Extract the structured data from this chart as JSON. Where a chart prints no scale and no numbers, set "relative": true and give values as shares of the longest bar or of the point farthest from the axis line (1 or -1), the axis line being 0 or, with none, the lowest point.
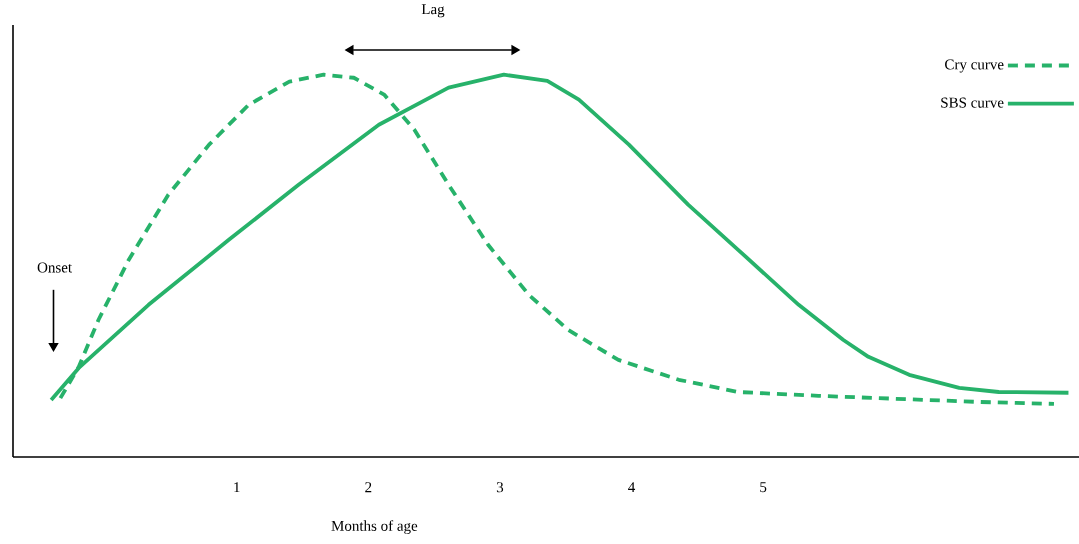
{
  "chart_data": {
    "type": "line",
    "relative": true,
    "xlabel": "Months of age",
    "xlim": [
      -0.7,
      7.4
    ],
    "xticks": [
      1,
      2,
      3,
      4,
      5
    ],
    "tick_labels": "x",
    "legend": "top right",
    "annotations": [
      "Onset",
      "Lag"
    ],
    "series": [
      {
        "name": "Cry curve",
        "color": "#27b26a",
        "line_style": "dashed",
        "x": [
          -0.34,
          -0.2,
          -0.05,
          0.18,
          0.48,
          0.79,
          1.09,
          1.4,
          1.66,
          1.89,
          2.12,
          2.35,
          2.61,
          2.91,
          3.22,
          3.52,
          3.9,
          4.36,
          4.81,
          5.42,
          6.03,
          6.64,
          7.21
        ],
        "values": [
          0.154,
          0.236,
          0.359,
          0.516,
          0.686,
          0.817,
          0.921,
          0.982,
          1.0,
          0.992,
          0.948,
          0.856,
          0.712,
          0.555,
          0.424,
          0.332,
          0.254,
          0.202,
          0.17,
          0.16,
          0.152,
          0.144,
          0.139
        ]
      },
      {
        "name": "SBS curve",
        "color": "#27b26a",
        "line_style": "solid",
        "x": [
          -0.41,
          -0.2,
          0.33,
          0.94,
          1.47,
          2.08,
          2.61,
          3.03,
          3.36,
          3.6,
          3.98,
          4.43,
          4.81,
          5.27,
          5.61,
          5.8,
          6.11,
          6.49,
          6.79,
          7.32
        ],
        "values": [
          0.149,
          0.233,
          0.398,
          0.568,
          0.712,
          0.869,
          0.966,
          1.0,
          0.984,
          0.935,
          0.817,
          0.66,
          0.542,
          0.398,
          0.306,
          0.262,
          0.215,
          0.181,
          0.17,
          0.168
        ]
      }
    ]
  }
}
